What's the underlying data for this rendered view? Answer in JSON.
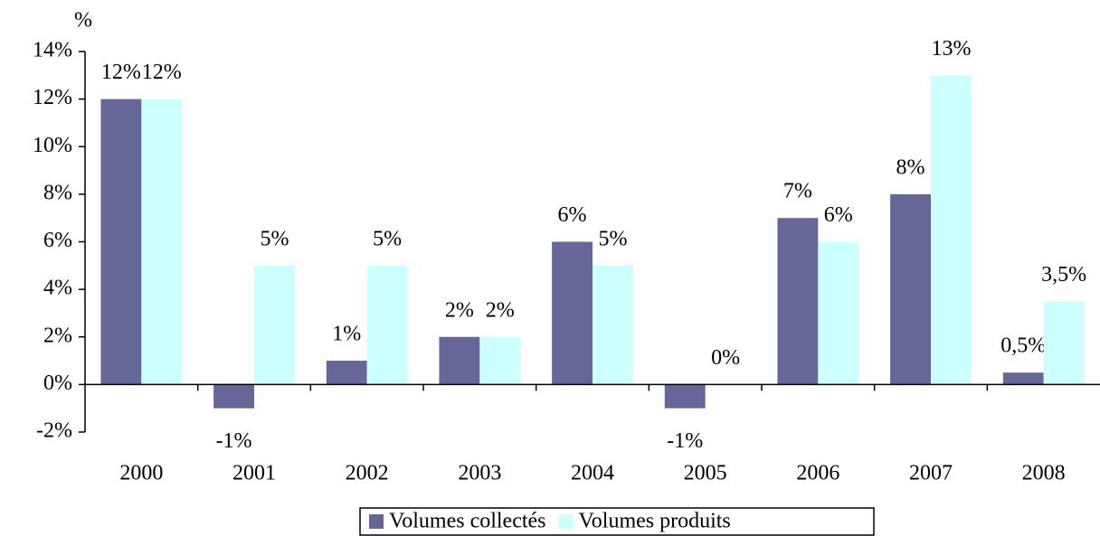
{
  "chart_data": {
    "type": "bar",
    "y_label": "%",
    "categories": [
      "2000",
      "2001",
      "2002",
      "2003",
      "2004",
      "2005",
      "2006",
      "2007",
      "2008"
    ],
    "series": [
      {
        "name": "Volumes collectés",
        "color": "#666699",
        "values": [
          12,
          -1,
          1,
          2,
          6,
          -1,
          7,
          8,
          0.5
        ],
        "value_labels": [
          "12%",
          "-1%",
          "1%",
          "2%",
          "6%",
          "-1%",
          "7%",
          "8%",
          "0,5%"
        ]
      },
      {
        "name": "Volumes produits",
        "color": "#ccffff",
        "values": [
          12,
          5,
          5,
          2,
          5,
          0,
          6,
          13,
          3.5
        ],
        "value_labels": [
          "12%",
          "5%",
          "5%",
          "2%",
          "5%",
          "0%",
          "6%",
          "13%",
          "3,5%"
        ]
      }
    ],
    "ylim": [
      -2,
      14
    ],
    "yticks": [
      {
        "value": -2,
        "label": "-2%"
      },
      {
        "value": 0,
        "label": "0%"
      },
      {
        "value": 2,
        "label": "2%"
      },
      {
        "value": 4,
        "label": "4%"
      },
      {
        "value": 6,
        "label": "6%"
      },
      {
        "value": 8,
        "label": "8%"
      },
      {
        "value": 10,
        "label": "10%"
      },
      {
        "value": 12,
        "label": "12%"
      },
      {
        "value": 14,
        "label": "14%"
      }
    ],
    "legend": "bottom"
  }
}
